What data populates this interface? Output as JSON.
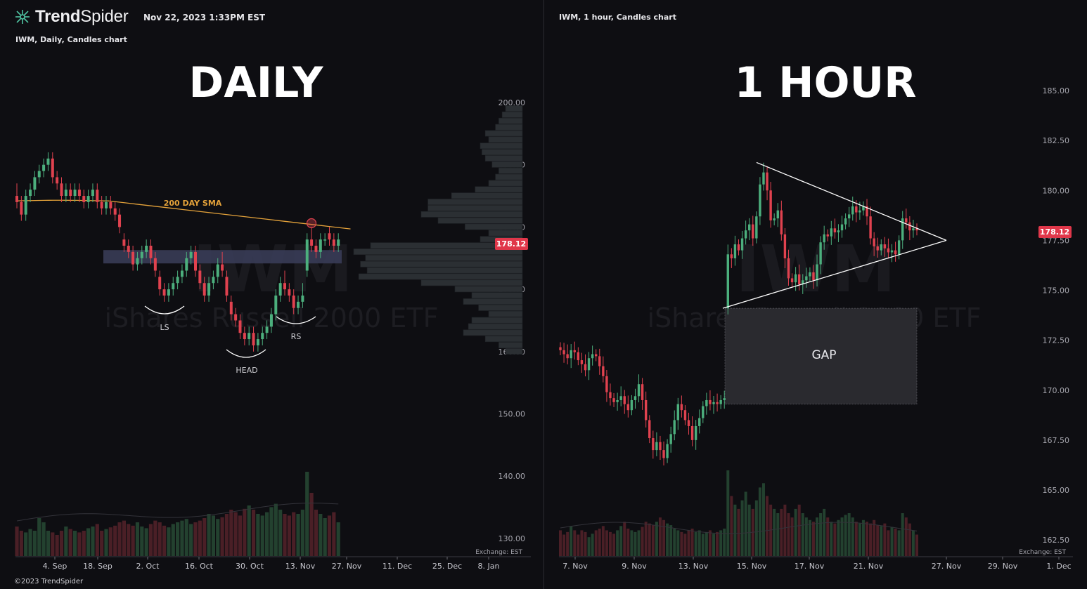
{
  "brand": {
    "name_bold": "Trend",
    "name_light": "Spider"
  },
  "timestamp": "Nov 22, 2023 1:33PM EST",
  "copyright": "©2023 TrendSpider",
  "colors": {
    "up": "#4caf7d",
    "down": "#e0424f",
    "sma": "#e4a23a",
    "price_badge": "#e0374a"
  },
  "charts": [
    {
      "subtitle": "IWM, Daily, Candles chart",
      "heading": "DAILY",
      "watermark_ticker": "IWM",
      "watermark_name": "iShares Russell 2000 ETF",
      "price_badge": "178.12",
      "exchange": "Exchange: EST",
      "sma_label": "200 DAY SMA",
      "annotations": {
        "left_shoulder": "LS",
        "head": "HEAD",
        "right_shoulder": "RS"
      }
    },
    {
      "subtitle": "IWM, 1 hour, Candles chart",
      "heading": "1 HOUR",
      "watermark_ticker": "IWM",
      "watermark_name": "iShares Russell 2000 ETF",
      "price_badge": "178.12",
      "exchange": "Exchange: EST",
      "gap_label": "GAP"
    }
  ],
  "chart_data": [
    {
      "type": "candlestick",
      "title": "IWM, Daily, Candles chart",
      "y_ticks": [
        200,
        190,
        180,
        170,
        160,
        150,
        140,
        130
      ],
      "ylim": [
        128,
        203
      ],
      "x_ticks": [
        "4. Sep",
        "18. Sep",
        "2. Oct",
        "16. Oct",
        "30. Oct",
        "13. Nov",
        "27. Nov",
        "11. Dec",
        "25. Dec",
        "8. Jan"
      ],
      "last_price": 178.12,
      "overlays": [
        "200 DAY SMA",
        "volume profile",
        "volume bars",
        "support zone ~174-176"
      ],
      "candles": [
        [
          185,
          187,
          183,
          184
        ],
        [
          184,
          185,
          181,
          182
        ],
        [
          182,
          186,
          181,
          185
        ],
        [
          185,
          187,
          184,
          186
        ],
        [
          186,
          189,
          185,
          188
        ],
        [
          188,
          190,
          187,
          189
        ],
        [
          189,
          191,
          188,
          190
        ],
        [
          190,
          192,
          189,
          191
        ],
        [
          191,
          192,
          187,
          188
        ],
        [
          188,
          189,
          186,
          187
        ],
        [
          187,
          188,
          184,
          185
        ],
        [
          185,
          187,
          184,
          186
        ],
        [
          186,
          187,
          184,
          185
        ],
        [
          185,
          187,
          184,
          186
        ],
        [
          186,
          187,
          184,
          185
        ],
        [
          185,
          186,
          183,
          184
        ],
        [
          184,
          186,
          183,
          185
        ],
        [
          185,
          187,
          184,
          186
        ],
        [
          186,
          187,
          183,
          184
        ],
        [
          184,
          185,
          182,
          183
        ],
        [
          183,
          185,
          182,
          184
        ],
        [
          184,
          185,
          182,
          183
        ],
        [
          183,
          184,
          181,
          182
        ],
        [
          182,
          183,
          179,
          180
        ],
        [
          178,
          179,
          176,
          177
        ],
        [
          177,
          178,
          175,
          176
        ],
        [
          176,
          177,
          173,
          174
        ],
        [
          174,
          176,
          173,
          175
        ],
        [
          175,
          177,
          174,
          176
        ],
        [
          176,
          178,
          175,
          177
        ],
        [
          177,
          178,
          174,
          175
        ],
        [
          175,
          176,
          172,
          173
        ],
        [
          172,
          173,
          169,
          170
        ],
        [
          170,
          171,
          168,
          169
        ],
        [
          169,
          171,
          168,
          170
        ],
        [
          170,
          172,
          169,
          171
        ],
        [
          171,
          173,
          170,
          172
        ],
        [
          172,
          174,
          171,
          173
        ],
        [
          173,
          176,
          172,
          175
        ],
        [
          175,
          177,
          174,
          176
        ],
        [
          176,
          177,
          172,
          173
        ],
        [
          173,
          174,
          170,
          171
        ],
        [
          171,
          172,
          168,
          169
        ],
        [
          169,
          172,
          168,
          171
        ],
        [
          171,
          173,
          170,
          172
        ],
        [
          172,
          175,
          171,
          174
        ],
        [
          174,
          176,
          172,
          173
        ],
        [
          172,
          173,
          168,
          169
        ],
        [
          168,
          169,
          165,
          166
        ],
        [
          166,
          167,
          164,
          165
        ],
        [
          165,
          166,
          162,
          163
        ],
        [
          163,
          164,
          161,
          162
        ],
        [
          162,
          164,
          161,
          163
        ],
        [
          163,
          164,
          160,
          161
        ],
        [
          161,
          163,
          160,
          162
        ],
        [
          162,
          164,
          161,
          163
        ],
        [
          163,
          165,
          162,
          164
        ],
        [
          164,
          167,
          163,
          166
        ],
        [
          166,
          170,
          165,
          169
        ],
        [
          169,
          172,
          168,
          171
        ],
        [
          171,
          173,
          169,
          170
        ],
        [
          170,
          171,
          168,
          169
        ],
        [
          169,
          170,
          166,
          167
        ],
        [
          167,
          169,
          166,
          168
        ],
        [
          168,
          171,
          167,
          169
        ],
        [
          173,
          179,
          172,
          178
        ],
        [
          178,
          180,
          176,
          177
        ],
        [
          177,
          178,
          175,
          176
        ],
        [
          176,
          179,
          175,
          178
        ],
        [
          178,
          179,
          177,
          178
        ],
        [
          179,
          180,
          177,
          178
        ],
        [
          178,
          179,
          176,
          177
        ],
        [
          177,
          179,
          176,
          178
        ]
      ],
      "volume_rel": [
        0.35,
        0.3,
        0.28,
        0.32,
        0.3,
        0.45,
        0.4,
        0.3,
        0.28,
        0.25,
        0.3,
        0.35,
        0.32,
        0.3,
        0.28,
        0.3,
        0.33,
        0.35,
        0.38,
        0.3,
        0.32,
        0.34,
        0.36,
        0.4,
        0.42,
        0.38,
        0.36,
        0.4,
        0.35,
        0.33,
        0.38,
        0.42,
        0.4,
        0.36,
        0.34,
        0.38,
        0.4,
        0.42,
        0.44,
        0.38,
        0.4,
        0.42,
        0.45,
        0.5,
        0.48,
        0.44,
        0.46,
        0.5,
        0.55,
        0.52,
        0.48,
        0.56,
        0.6,
        0.55,
        0.5,
        0.48,
        0.52,
        0.58,
        0.62,
        0.55,
        0.5,
        0.48,
        0.52,
        0.5,
        0.55,
        1.0,
        0.75,
        0.55,
        0.5,
        0.45,
        0.48,
        0.52,
        0.4
      ]
    },
    {
      "type": "candlestick",
      "title": "IWM, 1 hour, Candles chart",
      "y_ticks": [
        185.0,
        182.5,
        180.0,
        177.5,
        175.0,
        172.5,
        170.0,
        167.5,
        165.0,
        162.5
      ],
      "ylim": [
        162,
        186.2
      ],
      "x_ticks": [
        "7. Nov",
        "9. Nov",
        "13. Nov",
        "15. Nov",
        "17. Nov",
        "21. Nov",
        "27. Nov",
        "29. Nov",
        "1. Dec"
      ],
      "last_price": 178.12,
      "overlays": [
        "symmetrical triangle",
        "gap zone ~169.3-174.1",
        "volume bars"
      ],
      "closes": [
        172.0,
        171.8,
        171.6,
        172.0,
        171.9,
        171.5,
        171.3,
        171.0,
        171.6,
        171.8,
        171.7,
        171.2,
        170.7,
        169.9,
        169.6,
        169.4,
        169.5,
        169.7,
        169.3,
        169.0,
        169.5,
        169.7,
        170.3,
        169.5,
        168.5,
        167.6,
        167.0,
        167.4,
        167.0,
        166.6,
        167.3,
        167.8,
        168.5,
        169.3,
        169.0,
        168.5,
        168.2,
        167.5,
        168.2,
        168.6,
        169.2,
        169.5,
        169.3,
        169.4,
        169.3,
        169.5,
        169.6,
        176.8,
        176.6,
        177.3,
        177.0,
        177.6,
        178.0,
        178.3,
        177.6,
        178.7,
        180.3,
        180.9,
        180.0,
        178.5,
        178.6,
        179.0,
        177.8,
        176.6,
        175.6,
        175.4,
        175.8,
        175.3,
        175.5,
        175.7,
        175.9,
        175.5,
        176.3,
        177.4,
        177.8,
        177.7,
        178.1,
        177.9,
        178.0,
        178.3,
        178.6,
        178.8,
        179.2,
        178.9,
        179.0,
        179.2,
        178.7,
        177.6,
        177.2,
        177.0,
        177.3,
        177.1,
        176.9,
        177.0,
        176.8,
        177.5,
        178.6,
        178.4,
        178.0,
        178.1,
        178.0
      ],
      "volume_rel": [
        0.3,
        0.25,
        0.28,
        0.35,
        0.3,
        0.25,
        0.3,
        0.28,
        0.22,
        0.26,
        0.3,
        0.32,
        0.35,
        0.3,
        0.28,
        0.26,
        0.3,
        0.35,
        0.4,
        0.32,
        0.3,
        0.28,
        0.3,
        0.34,
        0.4,
        0.38,
        0.36,
        0.4,
        0.45,
        0.42,
        0.38,
        0.36,
        0.32,
        0.3,
        0.28,
        0.26,
        0.3,
        0.32,
        0.28,
        0.3,
        0.26,
        0.28,
        0.3,
        0.26,
        0.28,
        0.3,
        0.32,
        1.0,
        0.7,
        0.6,
        0.55,
        0.65,
        0.75,
        0.6,
        0.55,
        0.65,
        0.8,
        0.85,
        0.7,
        0.6,
        0.55,
        0.5,
        0.55,
        0.6,
        0.5,
        0.45,
        0.55,
        0.6,
        0.5,
        0.45,
        0.42,
        0.4,
        0.45,
        0.5,
        0.55,
        0.45,
        0.4,
        0.38,
        0.42,
        0.45,
        0.48,
        0.5,
        0.45,
        0.4,
        0.38,
        0.42,
        0.4,
        0.38,
        0.42,
        0.36,
        0.35,
        0.38,
        0.3,
        0.34,
        0.32,
        0.3,
        0.5,
        0.45,
        0.38,
        0.3,
        0.25
      ]
    }
  ]
}
